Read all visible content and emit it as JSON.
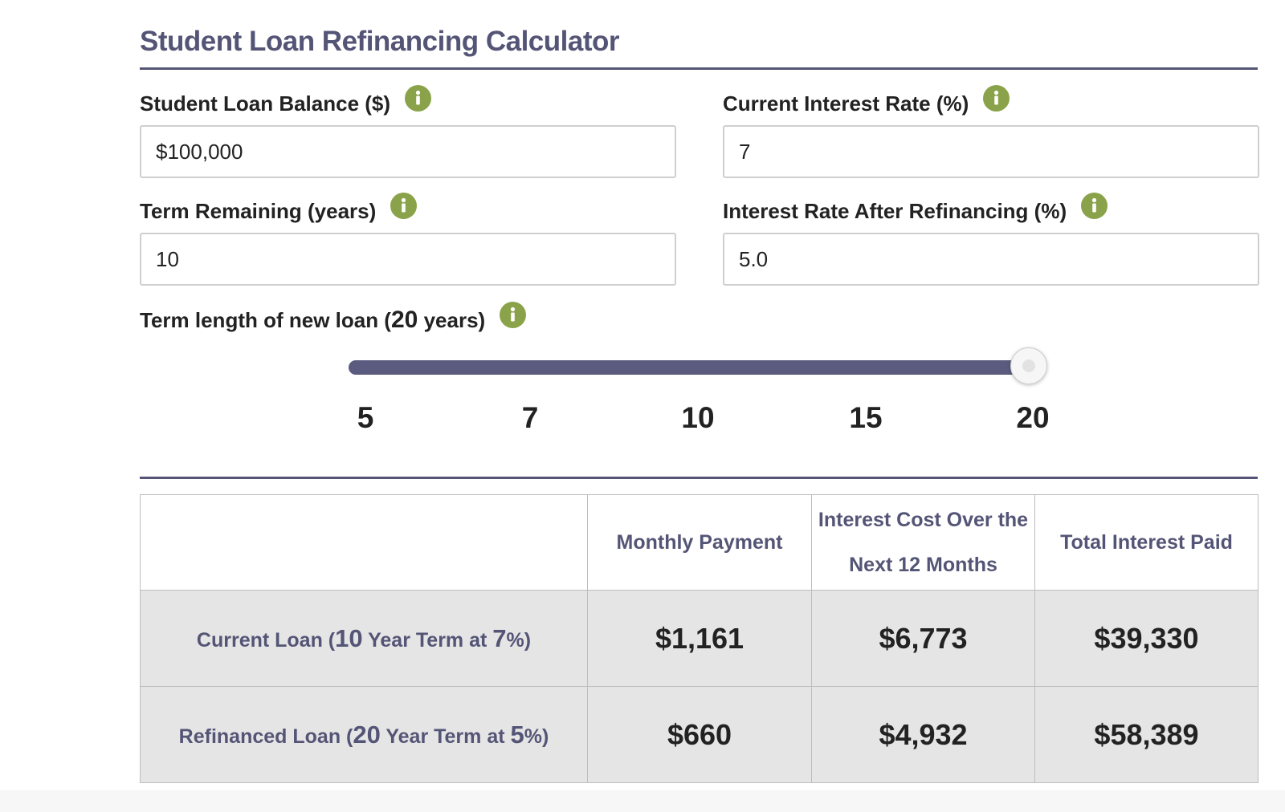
{
  "title": "Student Loan Refinancing Calculator",
  "fields": {
    "balance": {
      "label": "Student Loan Balance ($)",
      "value": "$100,000"
    },
    "current_rate": {
      "label": "Current Interest Rate (%)",
      "value": "7"
    },
    "term_remaining": {
      "label": "Term Remaining (years)",
      "value": "10"
    },
    "new_rate": {
      "label": "Interest Rate After Refinancing (%)",
      "value": "5.0"
    }
  },
  "icons": {
    "info": "info-icon"
  },
  "colors": {
    "accent": "#545576",
    "info": "#8aa34a",
    "row_bg": "#e5e5e5"
  },
  "term_slider": {
    "label_prefix": "Term length of new loan (",
    "label_value": "20",
    "label_suffix": " years)",
    "ticks": [
      "5",
      "7",
      "10",
      "15",
      "20"
    ],
    "selected": "20"
  },
  "table": {
    "headers": {
      "col1": "Monthly Payment",
      "col2": "Interest Cost Over the Next 12 Months",
      "col3": "Total Interest Paid"
    },
    "rows": [
      {
        "label_prefix": "Current Loan (",
        "term": "10",
        "label_middle": " Year Term at ",
        "rate": "7",
        "label_suffix": "%)",
        "monthly_payment": "$1,161",
        "interest_12_months": "$6,773",
        "total_interest": "$39,330"
      },
      {
        "label_prefix": "Refinanced Loan (",
        "term": "20",
        "label_middle": " Year Term at ",
        "rate": "5",
        "label_suffix": "%)",
        "monthly_payment": "$660",
        "interest_12_months": "$4,932",
        "total_interest": "$58,389"
      }
    ]
  }
}
